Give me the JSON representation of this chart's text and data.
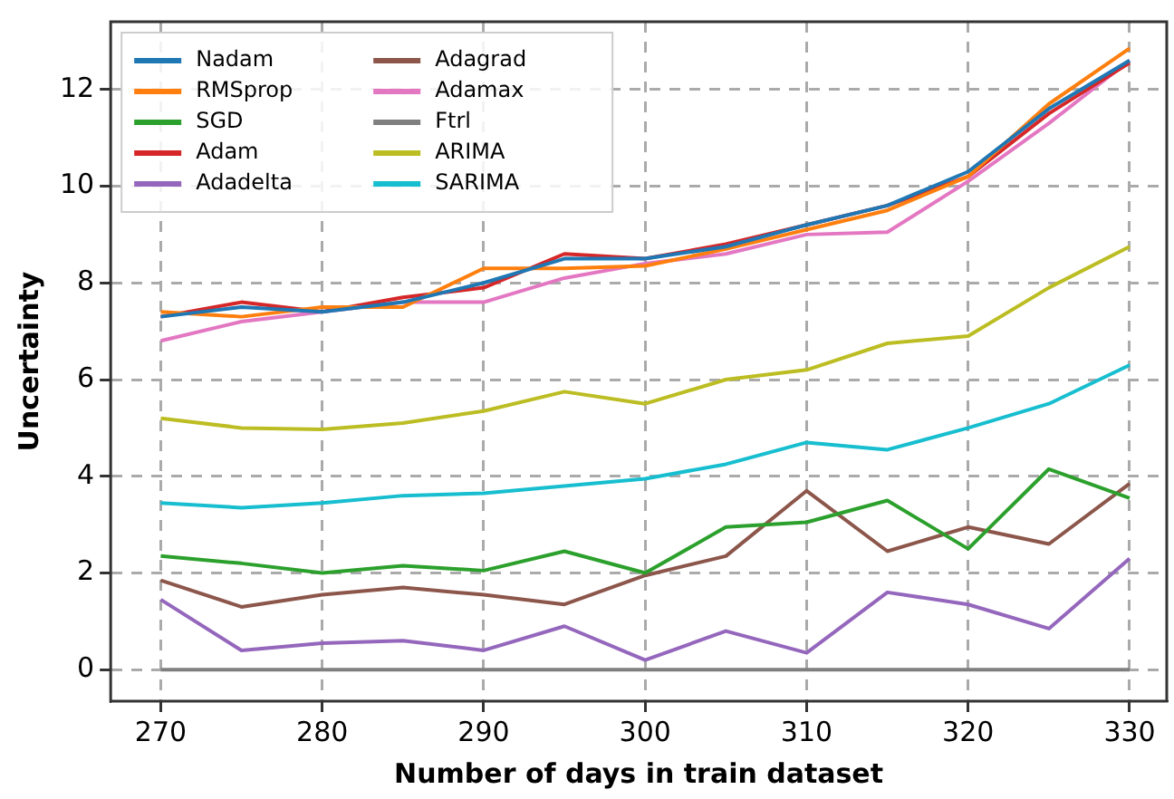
{
  "chart_data": {
    "type": "line",
    "xlabel": "Number of days in train dataset",
    "ylabel": "Uncertainty",
    "x": [
      270,
      275,
      280,
      285,
      290,
      295,
      300,
      305,
      310,
      315,
      320,
      325,
      330
    ],
    "xlim": [
      266.9,
      332.3
    ],
    "xticks": [
      270,
      280,
      290,
      300,
      310,
      320,
      330
    ],
    "ylim": [
      -0.65,
      13.4
    ],
    "yticks": [
      0,
      2,
      4,
      6,
      8,
      10,
      12
    ],
    "grid": true,
    "legend": "top left",
    "marker": "none",
    "line_style": "solid",
    "series": [
      {
        "name": "Nadam",
        "color": "#1f77b4",
        "values": [
          7.3,
          7.5,
          7.4,
          7.6,
          8.0,
          8.5,
          8.5,
          8.75,
          9.2,
          9.6,
          10.3,
          11.6,
          12.6
        ]
      },
      {
        "name": "RMSprop",
        "color": "#ff7f0e",
        "values": [
          7.4,
          7.3,
          7.5,
          7.5,
          8.3,
          8.3,
          8.35,
          8.7,
          9.1,
          9.5,
          10.2,
          11.7,
          12.85
        ]
      },
      {
        "name": "SGD",
        "color": "#2ca02c",
        "values": [
          2.35,
          2.2,
          2.0,
          2.15,
          2.05,
          2.45,
          2.0,
          2.95,
          3.05,
          3.5,
          2.5,
          4.15,
          3.55
        ]
      },
      {
        "name": "Adam",
        "color": "#d62728",
        "values": [
          7.3,
          7.6,
          7.4,
          7.7,
          7.9,
          8.6,
          8.5,
          8.8,
          9.2,
          9.6,
          10.2,
          11.5,
          12.55
        ]
      },
      {
        "name": "Adadelta",
        "color": "#9467bd",
        "values": [
          1.45,
          0.4,
          0.55,
          0.6,
          0.4,
          0.9,
          0.2,
          0.8,
          0.35,
          1.6,
          1.35,
          0.85,
          2.3
        ]
      },
      {
        "name": "Adagrad",
        "color": "#8c564b",
        "values": [
          1.85,
          1.3,
          1.55,
          1.7,
          1.55,
          1.35,
          1.95,
          2.35,
          3.7,
          2.45,
          2.95,
          2.6,
          3.85
        ]
      },
      {
        "name": "Adamax",
        "color": "#e377c2",
        "values": [
          6.8,
          7.2,
          7.4,
          7.6,
          7.6,
          8.1,
          8.4,
          8.6,
          9.0,
          9.05,
          10.1,
          11.3,
          12.6
        ]
      },
      {
        "name": "Ftrl",
        "color": "#7f7f7f",
        "values": [
          0,
          0,
          0,
          0,
          0,
          0,
          0,
          0,
          0,
          0,
          0,
          0,
          0
        ]
      },
      {
        "name": "ARIMA",
        "color": "#bcbd22",
        "values": [
          5.2,
          5.0,
          4.97,
          5.1,
          5.35,
          5.75,
          5.5,
          6.0,
          6.2,
          6.75,
          6.9,
          7.9,
          8.75
        ]
      },
      {
        "name": "SARIMA",
        "color": "#17becf",
        "values": [
          3.45,
          3.35,
          3.45,
          3.6,
          3.65,
          3.8,
          3.95,
          4.25,
          4.7,
          4.55,
          5.0,
          5.5,
          6.3
        ]
      }
    ]
  }
}
